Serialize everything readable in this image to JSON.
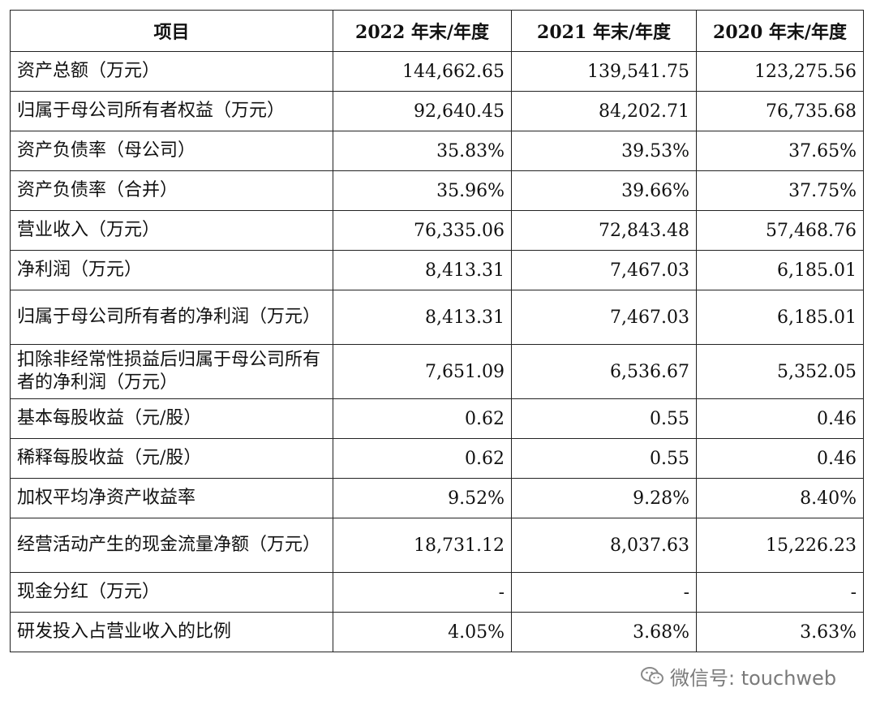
{
  "table": {
    "headers": [
      "项目",
      "2022 年末/年度",
      "2021 年末/年度",
      "2020 年末/年度"
    ],
    "rows": [
      {
        "label": "资产总额（万元）",
        "values": [
          "144,662.65",
          "139,541.75",
          "123,275.56"
        ]
      },
      {
        "label": "归属于母公司所有者权益（万元）",
        "values": [
          "92,640.45",
          "84,202.71",
          "76,735.68"
        ]
      },
      {
        "label": "资产负债率（母公司）",
        "values": [
          "35.83%",
          "39.53%",
          "37.65%"
        ]
      },
      {
        "label": "资产负债率（合并）",
        "values": [
          "35.96%",
          "39.66%",
          "37.75%"
        ]
      },
      {
        "label": "营业收入（万元）",
        "values": [
          "76,335.06",
          "72,843.48",
          "57,468.76"
        ]
      },
      {
        "label": "净利润（万元）",
        "values": [
          "8,413.31",
          "7,467.03",
          "6,185.01"
        ]
      },
      {
        "label": "归属于母公司所有者的净利润（万元）",
        "values": [
          "8,413.31",
          "7,467.03",
          "6,185.01"
        ]
      },
      {
        "label": "扣除非经常性损益后归属于母公司所有者的净利润（万元）",
        "values": [
          "7,651.09",
          "6,536.67",
          "5,352.05"
        ]
      },
      {
        "label": "基本每股收益（元/股）",
        "values": [
          "0.62",
          "0.55",
          "0.46"
        ]
      },
      {
        "label": "稀释每股收益（元/股）",
        "values": [
          "0.62",
          "0.55",
          "0.46"
        ]
      },
      {
        "label": "加权平均净资产收益率",
        "values": [
          "9.52%",
          "9.28%",
          "8.40%"
        ]
      },
      {
        "label": "经营活动产生的现金流量净额（万元）",
        "values": [
          "18,731.12",
          "8,037.63",
          "15,226.23"
        ]
      },
      {
        "label": "现金分红（万元）",
        "values": [
          "-",
          "-",
          "-"
        ]
      },
      {
        "label": "研发投入占营业收入的比例",
        "values": [
          "4.05%",
          "3.68%",
          "3.63%"
        ]
      }
    ]
  },
  "watermark": {
    "text": "微信号: touchweb",
    "icon": "wechat-icon"
  }
}
